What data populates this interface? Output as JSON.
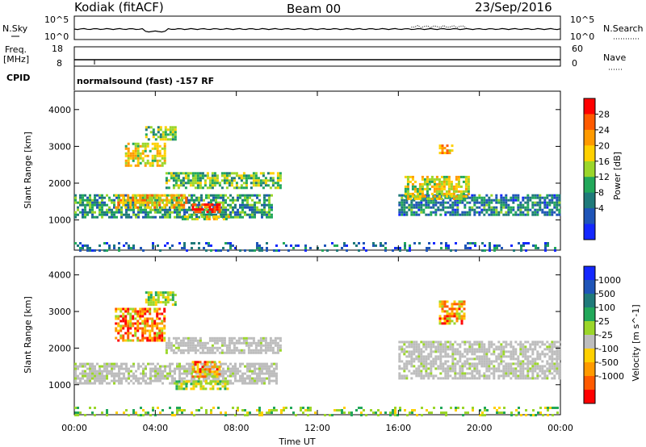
{
  "header": {
    "station": "Kodiak (fitACF)",
    "beam": "Beam 00",
    "date": "23/Sep/2016"
  },
  "noise_panel": {
    "left_label": "N.Sky",
    "right_label": "N.Search",
    "left_ticks": [
      "10^5",
      "10^0"
    ],
    "right_ticks": [
      "10^5",
      "10^0"
    ]
  },
  "freq_panel": {
    "left_label_1": "Freq.",
    "left_label_2": "[MHz]",
    "right_label": "Nave",
    "left_ticks": [
      "18",
      "8"
    ],
    "right_ticks": [
      "60",
      "0"
    ]
  },
  "cpid_panel": {
    "label": "CPID",
    "program": "normalsound (fast) -157 RF"
  },
  "chart_data": [
    {
      "type": "heatmap",
      "title": "Power",
      "ylabel": "Slant Range [km]",
      "xlabel": "",
      "ylim": [
        180,
        4500
      ],
      "xlim": [
        0,
        24
      ],
      "yticks": [
        "1000",
        "2000",
        "3000",
        "4000"
      ],
      "colorbar_label": "Power [dB]",
      "colorbar_ticks": [
        "28",
        "24",
        "20",
        "16",
        "12",
        "8",
        "4"
      ],
      "colorbar_colors": [
        "#ff0000",
        "#ff5a00",
        "#ff9a00",
        "#ffd000",
        "#9bd62a",
        "#22a85a",
        "#1f7a7a",
        "#1f55b8",
        "#1428ff"
      ],
      "regions": [
        {
          "t0": 0.0,
          "t1": 9.8,
          "r0": 1050,
          "r1": 1700,
          "level": 12
        },
        {
          "t0": 2.0,
          "t1": 5.5,
          "r0": 1350,
          "r1": 1700,
          "level": 20
        },
        {
          "t0": 5.8,
          "t1": 7.2,
          "r0": 1250,
          "r1": 1450,
          "level": 28
        },
        {
          "t0": 5.3,
          "t1": 7.6,
          "r0": 1000,
          "r1": 1120,
          "level": 18
        },
        {
          "t0": 4.5,
          "t1": 10.2,
          "r0": 1900,
          "r1": 2300,
          "level": 14
        },
        {
          "t0": 2.5,
          "t1": 4.5,
          "r0": 2500,
          "r1": 3100,
          "level": 18
        },
        {
          "t0": 3.5,
          "t1": 5.0,
          "r0": 3200,
          "r1": 3550,
          "level": 14
        },
        {
          "t0": 16.0,
          "t1": 24.0,
          "r0": 1150,
          "r1": 1700,
          "level": 10
        },
        {
          "t0": 16.3,
          "t1": 19.5,
          "r0": 1600,
          "r1": 2200,
          "level": 18
        },
        {
          "t0": 18.0,
          "t1": 18.7,
          "r0": 2800,
          "r1": 3050,
          "level": 22
        },
        {
          "t0": 0.0,
          "t1": 24.0,
          "r0": 180,
          "r1": 400,
          "level": 8
        }
      ]
    },
    {
      "type": "heatmap",
      "title": "Velocity",
      "ylabel": "Slant Range [km]",
      "xlabel": "Time UT",
      "ylim": [
        180,
        4500
      ],
      "xlim": [
        0,
        24
      ],
      "yticks": [
        "1000",
        "2000",
        "3000",
        "4000"
      ],
      "xticks": [
        "00:00",
        "04:00",
        "08:00",
        "12:00",
        "16:00",
        "20:00",
        "00:00"
      ],
      "colorbar_label": "Velocity [m s^-1]",
      "colorbar_ticks": [
        "1000",
        "500",
        "100",
        "25",
        "-25",
        "-100",
        "-500",
        "-1000"
      ],
      "colorbar_colors": [
        "#1428ff",
        "#1f55b8",
        "#1f7a7a",
        "#22a85a",
        "#9bd62a",
        "#bdbdbd",
        "#ffd000",
        "#ff9a00",
        "#ff5a00",
        "#ff0000"
      ],
      "regions": [
        {
          "t0": 0.0,
          "t1": 10.0,
          "r0": 1050,
          "r1": 1600,
          "level": "ground"
        },
        {
          "t0": 4.5,
          "t1": 10.2,
          "r0": 1900,
          "r1": 2300,
          "level": "ground"
        },
        {
          "t0": 5.8,
          "t1": 7.2,
          "r0": 1250,
          "r1": 1650,
          "level": "orange"
        },
        {
          "t0": 5.0,
          "t1": 7.6,
          "r0": 900,
          "r1": 1120,
          "level": "green"
        },
        {
          "t0": 2.0,
          "t1": 4.5,
          "r0": 2200,
          "r1": 3100,
          "level": "orange"
        },
        {
          "t0": 3.5,
          "t1": 5.0,
          "r0": 3200,
          "r1": 3550,
          "level": "green"
        },
        {
          "t0": 16.0,
          "t1": 24.0,
          "r0": 1150,
          "r1": 2200,
          "level": "ground"
        },
        {
          "t0": 18.0,
          "t1": 19.2,
          "r0": 2700,
          "r1": 3300,
          "level": "orange"
        },
        {
          "t0": 0.0,
          "t1": 24.0,
          "r0": 180,
          "r1": 400,
          "level": "green"
        }
      ]
    }
  ]
}
